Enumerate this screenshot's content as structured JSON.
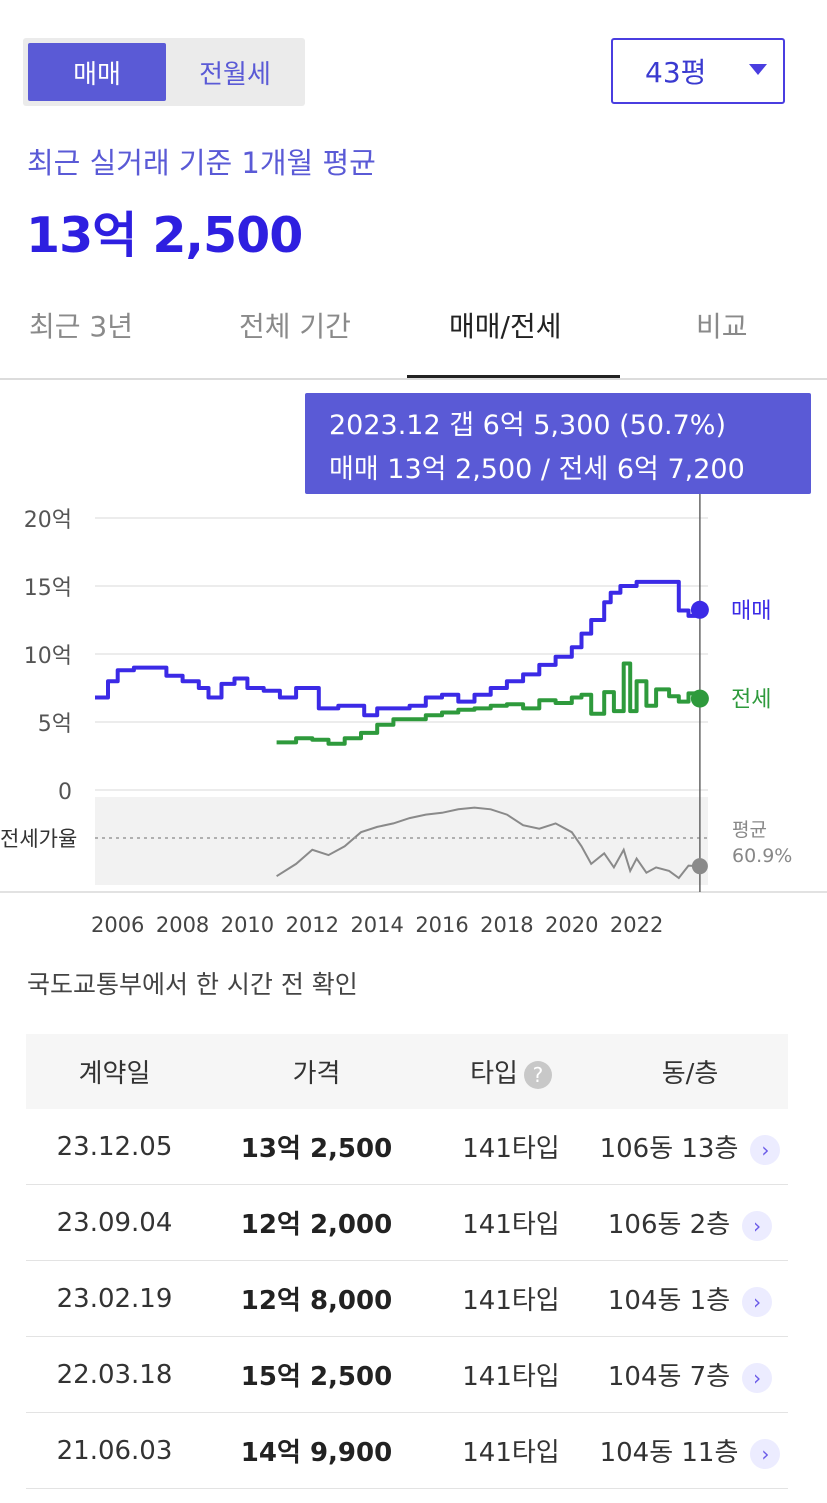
{
  "segment": {
    "active": "매매",
    "inactive": "전월세"
  },
  "area_select": {
    "value": "43평"
  },
  "summary": {
    "subtitle": "최근 실거래 기준 1개월 평균",
    "price": "13억 2,500"
  },
  "tabs": [
    {
      "label": "최근 3년"
    },
    {
      "label": "전체 기간"
    },
    {
      "label": "매매/전세"
    },
    {
      "label": "비교"
    }
  ],
  "tooltip": {
    "line1": "2023.12  갭 6억 5,300 (50.7%)",
    "line2": "매매 13억 2,500 / 전세 6억 7,200"
  },
  "chart_data": {
    "type": "line",
    "title": "",
    "ylabel": "",
    "y_tick_labels": [
      "20억",
      "15억",
      "10억",
      "5억",
      "0"
    ],
    "y_ticks": [
      20,
      15,
      10,
      5,
      0
    ],
    "ylim": [
      0,
      20
    ],
    "x_tick_labels": [
      "2006",
      "2008",
      "2010",
      "2012",
      "2014",
      "2016",
      "2018",
      "2020",
      "2022"
    ],
    "x_ticks": [
      2006,
      2008,
      2010,
      2012,
      2014,
      2016,
      2018,
      2020,
      2022
    ],
    "xlim": [
      2005.3,
      2024.2
    ],
    "grid": true,
    "series": [
      {
        "name": "매매",
        "color": "#3b2ae6",
        "x": [
          2005.3,
          2005.7,
          2006.0,
          2006.5,
          2007.0,
          2007.5,
          2008.0,
          2008.5,
          2008.8,
          2009.2,
          2009.6,
          2010.0,
          2010.5,
          2011.0,
          2011.5,
          2011.7,
          2012.2,
          2012.8,
          2013.2,
          2013.6,
          2014.0,
          2014.5,
          2015.0,
          2015.5,
          2016.0,
          2016.5,
          2017.0,
          2017.5,
          2018.0,
          2018.5,
          2019.0,
          2019.5,
          2020.0,
          2020.3,
          2020.6,
          2021.0,
          2021.2,
          2021.5,
          2022.0,
          2022.5,
          2023.0,
          2023.3,
          2023.6,
          2023.95
        ],
        "y": [
          6.8,
          8.0,
          8.8,
          9.0,
          9.0,
          8.4,
          8.0,
          7.5,
          6.8,
          7.8,
          8.2,
          7.5,
          7.3,
          6.8,
          7.5,
          7.5,
          6.0,
          6.2,
          6.2,
          5.5,
          6.0,
          6.0,
          6.2,
          6.8,
          7.0,
          6.5,
          7.0,
          7.5,
          8.0,
          8.5,
          9.2,
          9.8,
          10.5,
          11.5,
          12.5,
          13.8,
          14.5,
          15.0,
          15.3,
          15.3,
          15.3,
          13.2,
          12.8,
          13.25
        ]
      },
      {
        "name": "전세",
        "color": "#2e9a3c",
        "x": [
          2010.9,
          2011.5,
          2012.0,
          2012.5,
          2013.0,
          2013.5,
          2014.0,
          2014.5,
          2015.0,
          2015.5,
          2016.0,
          2016.5,
          2017.0,
          2017.5,
          2018.0,
          2018.5,
          2019.0,
          2019.5,
          2020.0,
          2020.3,
          2020.6,
          2021.0,
          2021.3,
          2021.6,
          2021.8,
          2022.0,
          2022.3,
          2022.6,
          2023.0,
          2023.3,
          2023.6,
          2023.95
        ],
        "y": [
          3.5,
          3.8,
          3.7,
          3.4,
          3.8,
          4.2,
          4.8,
          5.2,
          5.2,
          5.5,
          5.7,
          5.9,
          6.0,
          6.2,
          6.3,
          6.0,
          6.6,
          6.4,
          6.8,
          7.0,
          5.6,
          7.2,
          5.8,
          9.3,
          5.8,
          8.0,
          6.2,
          7.4,
          6.9,
          6.5,
          7.1,
          6.72
        ]
      }
    ],
    "end_labels": {
      "sale": "매매",
      "jeonse": "전세"
    },
    "ratio_panel": {
      "label": "전세가율",
      "avg_label": "평균",
      "avg_value": "60.9%",
      "x": [
        2010.9,
        2011.5,
        2012.0,
        2012.5,
        2013.0,
        2013.5,
        2014.0,
        2014.5,
        2015.0,
        2015.5,
        2016.0,
        2016.5,
        2017.0,
        2017.5,
        2018.0,
        2018.5,
        2019.0,
        2019.5,
        2020.0,
        2020.3,
        2020.6,
        2021.0,
        2021.3,
        2021.6,
        2021.8,
        2022.0,
        2022.3,
        2022.6,
        2023.0,
        2023.3,
        2023.6,
        2023.95
      ],
      "y": [
        45,
        52,
        60,
        57,
        62,
        70,
        73,
        75,
        78,
        80,
        81,
        83,
        84,
        83,
        80,
        74,
        72,
        75,
        70,
        62,
        52,
        58,
        50,
        60,
        48,
        55,
        47,
        50,
        48,
        44,
        51,
        50.7
      ]
    }
  },
  "source_note": "국도교통부에서 한 시간 전 확인",
  "table": {
    "headers": [
      "계약일",
      "가격",
      "타입",
      "동/층"
    ],
    "help_symbol": "?",
    "rows": [
      {
        "date": "23.12.05",
        "price": "13억 2,500",
        "type": "141타입",
        "unit": "106동 13층"
      },
      {
        "date": "23.09.04",
        "price": "12억 2,000",
        "type": "141타입",
        "unit": "106동 2층"
      },
      {
        "date": "23.02.19",
        "price": "12억 8,000",
        "type": "141타입",
        "unit": "104동 1층"
      },
      {
        "date": "22.03.18",
        "price": "15억 2,500",
        "type": "141타입",
        "unit": "104동 7층"
      },
      {
        "date": "21.06.03",
        "price": "14억 9,900",
        "type": "141타입",
        "unit": "104동 11층"
      }
    ]
  }
}
